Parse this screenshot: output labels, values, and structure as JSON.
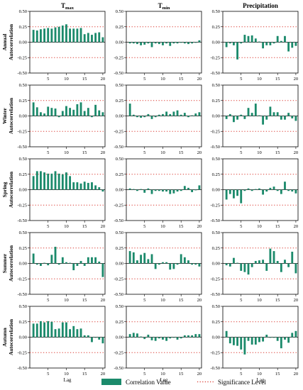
{
  "colors": {
    "bar": "#1b8a6b",
    "significance": "#d9342b",
    "axis": "#000000"
  },
  "chart_data": {
    "type": "bar",
    "columns": [
      {
        "key": "tmax",
        "title": "T",
        "title_sub": "max"
      },
      {
        "key": "tmin",
        "title": "T",
        "title_sub": "min"
      },
      {
        "key": "prcp",
        "title": "Precipitation",
        "title_sub": ""
      }
    ],
    "rows": [
      {
        "label_top": "Annual",
        "label_bottom": "Autocorrelation"
      },
      {
        "label_top": "Winter",
        "label_bottom": "Autocorrelation"
      },
      {
        "label_top": "Spring",
        "label_bottom": "Autocorrelation"
      },
      {
        "label_top": "Summer",
        "label_bottom": "Autocorrelation"
      },
      {
        "label_top": "Autumn",
        "label_bottom": "Autocorrelation"
      }
    ],
    "ylim": [
      -0.5,
      0.5
    ],
    "yticks": [
      "0.50",
      "0.25",
      "0.00",
      "-0.25",
      "-0.50"
    ],
    "xticks": [
      5,
      10,
      15,
      20
    ],
    "xlim": [
      0,
      20.6
    ],
    "xlabel": "Lag",
    "significance_level": 0.25,
    "lags": [
      1,
      2,
      3,
      4,
      5,
      6,
      7,
      8,
      9,
      10,
      11,
      12,
      13,
      14,
      15,
      16,
      17,
      18,
      19,
      20
    ],
    "panels": [
      [
        [
          0.2,
          0.19,
          0.21,
          0.22,
          0.23,
          0.22,
          0.24,
          0.25,
          0.27,
          0.29,
          0.22,
          0.22,
          0.22,
          0.23,
          0.13,
          0.15,
          0.12,
          0.15,
          0.16,
          0.08
        ],
        [
          -0.02,
          -0.02,
          -0.03,
          -0.05,
          -0.04,
          -0.02,
          -0.08,
          -0.02,
          -0.03,
          -0.05,
          -0.02,
          -0.06,
          -0.02,
          -0.02,
          -0.01,
          -0.02,
          -0.03,
          -0.02,
          -0.01,
          0.03
        ],
        [
          -0.08,
          -0.02,
          -0.05,
          -0.28,
          -0.02,
          0.12,
          0.1,
          0.11,
          0.06,
          0.01,
          -0.1,
          -0.05,
          -0.05,
          -0.02,
          0.1,
          0.02,
          0.1,
          -0.15,
          -0.09,
          -0.06
        ]
      ],
      [
        [
          0.22,
          0.14,
          0.06,
          0.04,
          0.15,
          0.13,
          0.12,
          -0.02,
          0.08,
          0.16,
          0.13,
          0.1,
          0.19,
          0.22,
          0.08,
          0.13,
          -0.02,
          0.18,
          0.09,
          0.06
        ],
        [
          0.2,
          0.02,
          -0.02,
          -0.03,
          -0.02,
          0.03,
          -0.05,
          -0.02,
          0.02,
          0.03,
          0.07,
          0.03,
          0.07,
          0.09,
          0.02,
          0.05,
          -0.02,
          0.01,
          0.04,
          0.06
        ],
        [
          -0.05,
          0.03,
          -0.1,
          -0.06,
          0.02,
          -0.05,
          0.13,
          0.05,
          0.2,
          0.01,
          -0.14,
          -0.06,
          0.15,
          0.06,
          0.06,
          -0.06,
          -0.06,
          0.05,
          -0.04,
          -0.08
        ]
      ],
      [
        [
          0.22,
          0.3,
          0.3,
          0.28,
          0.26,
          0.26,
          0.3,
          0.26,
          0.25,
          0.28,
          0.22,
          0.12,
          0.12,
          0.1,
          0.13,
          0.11,
          0.12,
          0.07,
          0.04,
          -0.03
        ],
        [
          0.02,
          0.01,
          -0.02,
          0.01,
          -0.05,
          0.02,
          -0.07,
          -0.02,
          -0.02,
          -0.03,
          -0.03,
          -0.07,
          -0.06,
          -0.03,
          -0.02,
          0.06,
          0.03,
          -0.04,
          -0.01,
          0.07
        ],
        [
          -0.16,
          -0.07,
          -0.14,
          -0.1,
          -0.22,
          -0.02,
          0.02,
          -0.02,
          0.01,
          0.02,
          -0.08,
          -0.03,
          0.03,
          0.05,
          -0.02,
          -0.07,
          0.13,
          -0.02,
          -0.03,
          -0.06
        ]
      ],
      [
        [
          0.16,
          -0.02,
          -0.04,
          0.01,
          -0.03,
          0.14,
          0.27,
          -0.02,
          0.1,
          0.02,
          0.01,
          -0.11,
          -0.04,
          0.04,
          -0.04,
          0.1,
          0.1,
          0.1,
          0.03,
          -0.22
        ],
        [
          0.2,
          0.18,
          0.05,
          0.14,
          0.17,
          0.07,
          0.15,
          -0.09,
          -0.02,
          0.02,
          0.02,
          -0.1,
          -0.09,
          -0.02,
          0.15,
          0.1,
          0.05,
          -0.02,
          -0.02,
          -0.05
        ],
        [
          -0.03,
          -0.05,
          0.09,
          0.01,
          -0.12,
          -0.14,
          -0.18,
          -0.06,
          0.04,
          0.05,
          0.06,
          -0.12,
          0.24,
          0.2,
          0.04,
          -0.14,
          0.06,
          -0.06,
          0.19,
          -0.16
        ]
      ],
      [
        [
          0.22,
          0.22,
          0.26,
          0.24,
          0.26,
          0.25,
          0.13,
          0.14,
          0.24,
          0.24,
          0.13,
          0.18,
          0.13,
          0.14,
          0.03,
          0.03,
          -0.08,
          -0.01,
          -0.04,
          -0.1
        ],
        [
          0.05,
          0.07,
          0.06,
          0.01,
          -0.03,
          0.04,
          -0.05,
          -0.06,
          -0.02,
          -0.04,
          -0.06,
          -0.02,
          -0.01,
          -0.04,
          -0.02,
          0.03,
          0.03,
          0.03,
          0.05,
          0.05
        ],
        [
          0.1,
          -0.1,
          -0.13,
          -0.14,
          -0.2,
          -0.28,
          -0.06,
          -0.12,
          -0.12,
          -0.08,
          -0.07,
          0.04,
          -0.01,
          -0.01,
          -0.06,
          -0.18,
          -0.04,
          -0.09,
          0.07,
          0.1
        ]
      ]
    ],
    "legend": [
      {
        "label": "Correlation Value",
        "kind": "bar"
      },
      {
        "label": "Significance Level",
        "kind": "dotted-line"
      }
    ]
  }
}
